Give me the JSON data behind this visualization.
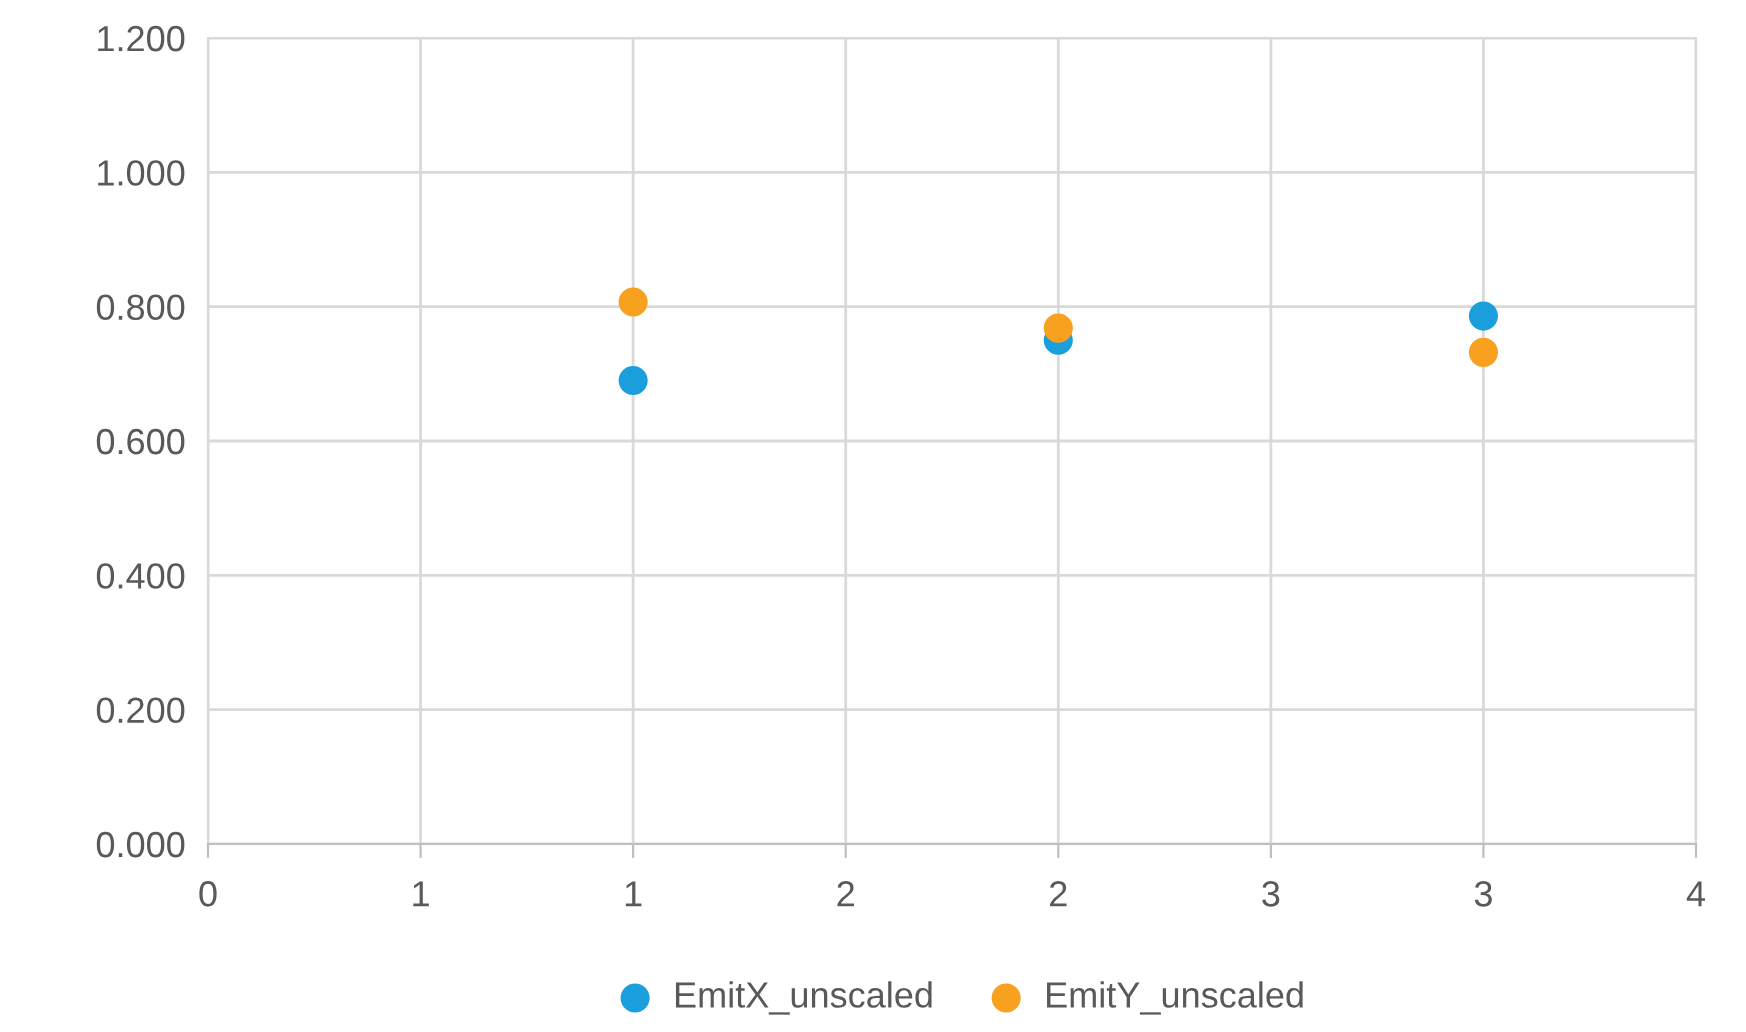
{
  "chart_data": {
    "type": "scatter",
    "x": [
      1,
      2,
      3
    ],
    "series": [
      {
        "name": "EmitX_unscaled",
        "color": "#1a9fdc",
        "values": [
          0.69,
          0.75,
          0.786
        ]
      },
      {
        "name": "EmitY_unscaled",
        "color": "#f7a11e",
        "values": [
          0.807,
          0.768,
          0.732
        ]
      }
    ],
    "xlim": [
      0,
      3.5
    ],
    "xticks": [
      0,
      {
        "value": 0.5,
        "label": "1"
      },
      1,
      {
        "value": 1.5,
        "label": "2"
      },
      2,
      {
        "value": 2.5,
        "label": "3"
      },
      3,
      {
        "value": 3.5,
        "label": "4"
      }
    ],
    "ylim": [
      0,
      1.2
    ],
    "yticks": [
      {
        "value": 0,
        "label": "0.000"
      },
      {
        "value": 0.2,
        "label": "0.200"
      },
      {
        "value": 0.4,
        "label": "0.400"
      },
      {
        "value": 0.6,
        "label": "0.600"
      },
      {
        "value": 0.8,
        "label": "0.800"
      },
      {
        "value": 1.0,
        "label": "1.000"
      },
      {
        "value": 1.2,
        "label": "1.200"
      }
    ],
    "grid": true,
    "legend": "bottom",
    "marker": "circle"
  }
}
